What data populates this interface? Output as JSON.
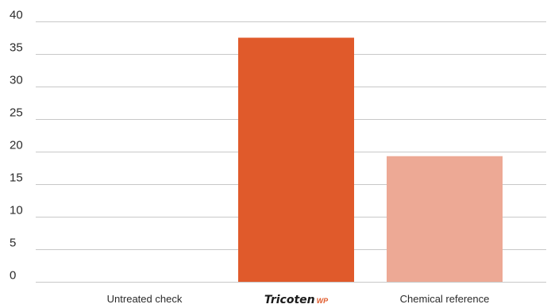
{
  "chart_data": {
    "type": "bar",
    "categories": [
      "Untreated check",
      "Tricoten WP",
      "Chemical reference"
    ],
    "values": [
      0,
      37.5,
      19.3
    ],
    "bar_colors": [
      "#e05a2b",
      "#e05a2b",
      "#eda995"
    ],
    "ylim": [
      0,
      40
    ],
    "yticks": [
      0,
      5,
      10,
      15,
      20,
      25,
      30,
      35,
      40
    ],
    "grid": true,
    "title": "",
    "xlabel": "",
    "ylabel": ""
  },
  "brand_label": {
    "main": "Tricoten",
    "suffix": "WP"
  }
}
